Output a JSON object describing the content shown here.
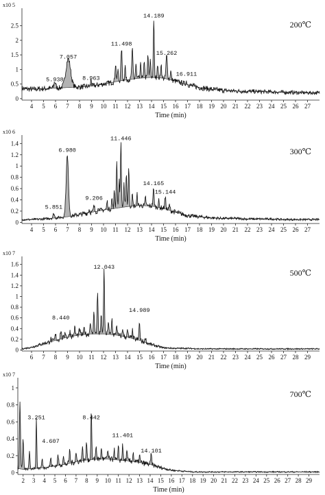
{
  "chart_data": [
    {
      "type": "area",
      "temperature_label": "200℃",
      "multiplier": "x10 5",
      "xlabel": "Time (min)",
      "xlim": [
        3.2,
        28
      ],
      "ylim": [
        -0.05,
        3.1
      ],
      "xticks": [
        4,
        5,
        6,
        7,
        8,
        9,
        10,
        11,
        12,
        13,
        14,
        15,
        16,
        17,
        18,
        19,
        20,
        21,
        22,
        23,
        24,
        25,
        26,
        27
      ],
      "yticks": [
        0,
        0.5,
        1,
        1.5,
        2,
        2.5
      ],
      "ytick_labels": [
        "0",
        "0.5",
        "1",
        "1.5",
        "2",
        "2.5"
      ],
      "baseline": [
        [
          3.2,
          0.35
        ],
        [
          4,
          0.32
        ],
        [
          5,
          0.34
        ],
        [
          6,
          0.36
        ],
        [
          7,
          0.38
        ],
        [
          8,
          0.4
        ],
        [
          9,
          0.43
        ],
        [
          10,
          0.5
        ],
        [
          11,
          0.58
        ],
        [
          12,
          0.65
        ],
        [
          13,
          0.7
        ],
        [
          14,
          0.73
        ],
        [
          15,
          0.7
        ],
        [
          16,
          0.6
        ],
        [
          17,
          0.48
        ],
        [
          18,
          0.38
        ],
        [
          19,
          0.32
        ],
        [
          20,
          0.28
        ],
        [
          21,
          0.26
        ],
        [
          22,
          0.25
        ],
        [
          23,
          0.24
        ],
        [
          24,
          0.23
        ],
        [
          25,
          0.22
        ],
        [
          26,
          0.21
        ],
        [
          27,
          0.2
        ],
        [
          28,
          0.2
        ]
      ],
      "peaks": [
        [
          5.938,
          0.22,
          0.08
        ],
        [
          7.057,
          0.98,
          0.2
        ],
        [
          8.963,
          0.22,
          0.04
        ],
        [
          11.0,
          0.6,
          0.05
        ],
        [
          11.2,
          0.4,
          0.04
        ],
        [
          11.498,
          1.1,
          0.05
        ],
        [
          11.8,
          0.5,
          0.04
        ],
        [
          12.4,
          1.0,
          0.05
        ],
        [
          12.7,
          0.5,
          0.04
        ],
        [
          13.1,
          0.5,
          0.04
        ],
        [
          13.4,
          0.6,
          0.04
        ],
        [
          13.7,
          0.8,
          0.04
        ],
        [
          13.9,
          0.6,
          0.04
        ],
        [
          14.189,
          2.0,
          0.04
        ],
        [
          14.5,
          0.5,
          0.04
        ],
        [
          14.8,
          0.5,
          0.04
        ],
        [
          15.262,
          0.8,
          0.06
        ],
        [
          15.6,
          0.3,
          0.05
        ],
        [
          16.911,
          0.1,
          0.05
        ]
      ],
      "labeled_peaks": [
        {
          "label": "5.938",
          "x": 5.938,
          "y": 0.6
        },
        {
          "label": "7.057",
          "x": 7.057,
          "y": 1.37
        },
        {
          "label": "8.963",
          "x": 8.963,
          "y": 0.64
        },
        {
          "label": "11.498",
          "x": 11.498,
          "y": 1.82
        },
        {
          "label": "14.189",
          "x": 14.189,
          "y": 2.78
        },
        {
          "label": "15.262",
          "x": 15.262,
          "y": 1.5
        },
        {
          "label": "16.911",
          "x": 16.911,
          "y": 0.78
        }
      ]
    },
    {
      "type": "area",
      "temperature_label": "300℃",
      "multiplier": "x10 6",
      "xlabel": "Time (min)",
      "xlim": [
        3.2,
        28
      ],
      "ylim": [
        -0.02,
        1.55
      ],
      "xticks": [
        4,
        5,
        6,
        7,
        8,
        9,
        10,
        11,
        12,
        13,
        14,
        15,
        16,
        17,
        18,
        19,
        20,
        21,
        22,
        23,
        24,
        25,
        26,
        27
      ],
      "yticks": [
        0,
        0.2,
        0.4,
        0.6,
        0.8,
        1,
        1.2,
        1.4
      ],
      "ytick_labels": [
        "0",
        "0.2",
        "0.4",
        "0.6",
        "0.8",
        "1",
        "1.2",
        "1.4"
      ],
      "baseline": [
        [
          3.2,
          0.05
        ],
        [
          4,
          0.05
        ],
        [
          5,
          0.06
        ],
        [
          6,
          0.08
        ],
        [
          7,
          0.1
        ],
        [
          8,
          0.14
        ],
        [
          9,
          0.18
        ],
        [
          10,
          0.22
        ],
        [
          11,
          0.25
        ],
        [
          12,
          0.28
        ],
        [
          13,
          0.3
        ],
        [
          14,
          0.29
        ],
        [
          15,
          0.25
        ],
        [
          16,
          0.18
        ],
        [
          17,
          0.12
        ],
        [
          18,
          0.1
        ],
        [
          19,
          0.08
        ],
        [
          20,
          0.07
        ],
        [
          21,
          0.07
        ],
        [
          22,
          0.06
        ],
        [
          23,
          0.06
        ],
        [
          24,
          0.06
        ],
        [
          25,
          0.05
        ],
        [
          26,
          0.05
        ],
        [
          27,
          0.05
        ],
        [
          28,
          0.05
        ]
      ],
      "peaks": [
        [
          5.851,
          0.08,
          0.06
        ],
        [
          6.98,
          1.08,
          0.1
        ],
        [
          8.8,
          0.06,
          0.05
        ],
        [
          9.206,
          0.1,
          0.05
        ],
        [
          9.6,
          0.08,
          0.04
        ],
        [
          10.3,
          0.15,
          0.04
        ],
        [
          10.7,
          0.18,
          0.04
        ],
        [
          10.9,
          0.3,
          0.04
        ],
        [
          11.1,
          0.85,
          0.04
        ],
        [
          11.3,
          0.5,
          0.04
        ],
        [
          11.446,
          1.15,
          0.04
        ],
        [
          11.7,
          0.4,
          0.04
        ],
        [
          11.9,
          0.6,
          0.04
        ],
        [
          12.1,
          0.7,
          0.04
        ],
        [
          12.4,
          0.2,
          0.04
        ],
        [
          12.8,
          0.2,
          0.04
        ],
        [
          13.5,
          0.15,
          0.04
        ],
        [
          14.165,
          0.3,
          0.05
        ],
        [
          14.6,
          0.12,
          0.04
        ],
        [
          15.144,
          0.2,
          0.05
        ],
        [
          15.5,
          0.1,
          0.04
        ]
      ],
      "labeled_peaks": [
        {
          "label": "5.851",
          "x": 5.851,
          "y": 0.24
        },
        {
          "label": "6.980",
          "x": 6.98,
          "y": 1.25
        },
        {
          "label": "9.206",
          "x": 9.206,
          "y": 0.4
        },
        {
          "label": "11.446",
          "x": 11.446,
          "y": 1.46
        },
        {
          "label": "14.165",
          "x": 14.165,
          "y": 0.66
        },
        {
          "label": "15.144",
          "x": 15.144,
          "y": 0.51
        }
      ]
    },
    {
      "type": "area",
      "temperature_label": "500℃",
      "multiplier": "x10 7",
      "xlabel": "Time (min)",
      "xlim": [
        5.2,
        30
      ],
      "ylim": [
        -0.02,
        1.75
      ],
      "xticks": [
        6,
        7,
        8,
        9,
        10,
        11,
        12,
        13,
        14,
        15,
        16,
        17,
        18,
        19,
        20,
        21,
        22,
        23,
        24,
        25,
        26,
        27,
        28,
        29
      ],
      "yticks": [
        0,
        0.2,
        0.4,
        0.6,
        0.8,
        1,
        1.2,
        1.4,
        1.6
      ],
      "ytick_labels": [
        "0",
        "0.2",
        "0.4",
        "0.6",
        "0.8",
        "1",
        "1.2",
        "1.4",
        "1.6"
      ],
      "baseline": [
        [
          5.2,
          0.02
        ],
        [
          6,
          0.05
        ],
        [
          7,
          0.12
        ],
        [
          8,
          0.18
        ],
        [
          9,
          0.24
        ],
        [
          10,
          0.28
        ],
        [
          11,
          0.3
        ],
        [
          12,
          0.3
        ],
        [
          13,
          0.28
        ],
        [
          14,
          0.24
        ],
        [
          15,
          0.18
        ],
        [
          16,
          0.1
        ],
        [
          17,
          0.04
        ],
        [
          18,
          0.03
        ],
        [
          19,
          0.03
        ],
        [
          20,
          0.02
        ],
        [
          21,
          0.02
        ],
        [
          22,
          0.02
        ],
        [
          23,
          0.02
        ],
        [
          24,
          0.02
        ],
        [
          25,
          0.02
        ],
        [
          26,
          0.02
        ],
        [
          27,
          0.02
        ],
        [
          28,
          0.02
        ],
        [
          29,
          0.02
        ],
        [
          30,
          0.02
        ]
      ],
      "peaks": [
        [
          7.6,
          0.05,
          0.05
        ],
        [
          8.0,
          0.1,
          0.05
        ],
        [
          8.44,
          0.15,
          0.05
        ],
        [
          8.8,
          0.12,
          0.05
        ],
        [
          9.2,
          0.1,
          0.05
        ],
        [
          9.6,
          0.15,
          0.05
        ],
        [
          10.0,
          0.1,
          0.05
        ],
        [
          10.4,
          0.12,
          0.05
        ],
        [
          10.9,
          0.25,
          0.04
        ],
        [
          11.2,
          0.45,
          0.04
        ],
        [
          11.5,
          0.8,
          0.04
        ],
        [
          11.8,
          0.35,
          0.04
        ],
        [
          12.043,
          1.2,
          0.04
        ],
        [
          12.4,
          0.25,
          0.04
        ],
        [
          12.7,
          0.3,
          0.04
        ],
        [
          13.1,
          0.2,
          0.04
        ],
        [
          13.6,
          0.15,
          0.04
        ],
        [
          14.0,
          0.12,
          0.04
        ],
        [
          14.4,
          0.15,
          0.04
        ],
        [
          14.989,
          0.35,
          0.04
        ],
        [
          15.5,
          0.1,
          0.04
        ]
      ],
      "labeled_peaks": [
        {
          "label": "8.440",
          "x": 8.44,
          "y": 0.57
        },
        {
          "label": "12.043",
          "x": 12.043,
          "y": 1.52
        },
        {
          "label": "14.989",
          "x": 14.989,
          "y": 0.71
        }
      ]
    },
    {
      "type": "area",
      "temperature_label": "700℃",
      "multiplier": "x10 7",
      "xlabel": "Time (min)",
      "xlim": [
        1.5,
        30
      ],
      "ylim": [
        -0.02,
        1.12
      ],
      "xticks": [
        2,
        3,
        4,
        5,
        6,
        7,
        8,
        9,
        10,
        11,
        12,
        13,
        14,
        15,
        16,
        17,
        18,
        19,
        20,
        21,
        22,
        23,
        24,
        25,
        26,
        27,
        28,
        29
      ],
      "yticks": [
        0,
        0.2,
        0.4,
        0.6,
        0.8,
        1
      ],
      "ytick_labels": [
        "0",
        "0.2",
        "0.4",
        "0.6",
        "0.8",
        "1"
      ],
      "baseline": [
        [
          1.5,
          0.05
        ],
        [
          2,
          0.04
        ],
        [
          3,
          0.05
        ],
        [
          4,
          0.06
        ],
        [
          5,
          0.08
        ],
        [
          6,
          0.1
        ],
        [
          7,
          0.13
        ],
        [
          8,
          0.15
        ],
        [
          9,
          0.16
        ],
        [
          10,
          0.16
        ],
        [
          11,
          0.15
        ],
        [
          12,
          0.14
        ],
        [
          13,
          0.12
        ],
        [
          14,
          0.1
        ],
        [
          15,
          0.06
        ],
        [
          16,
          0.03
        ],
        [
          17,
          0.02
        ],
        [
          18,
          0.01
        ],
        [
          19,
          0.01
        ],
        [
          20,
          0.01
        ],
        [
          21,
          0.01
        ],
        [
          22,
          0.01
        ],
        [
          23,
          0.01
        ],
        [
          24,
          0.01
        ],
        [
          25,
          0.01
        ],
        [
          26,
          0.01
        ],
        [
          27,
          0.01
        ],
        [
          28,
          0.01
        ],
        [
          29,
          0.01
        ],
        [
          30,
          0.01
        ]
      ],
      "peaks": [
        [
          1.7,
          0.8,
          0.05
        ],
        [
          2.0,
          0.35,
          0.05
        ],
        [
          2.6,
          0.2,
          0.05
        ],
        [
          3.251,
          0.58,
          0.04
        ],
        [
          3.8,
          0.1,
          0.05
        ],
        [
          4.607,
          0.1,
          0.05
        ],
        [
          5.3,
          0.12,
          0.05
        ],
        [
          5.8,
          0.1,
          0.05
        ],
        [
          6.4,
          0.15,
          0.05
        ],
        [
          7.0,
          0.1,
          0.05
        ],
        [
          7.6,
          0.15,
          0.05
        ],
        [
          8.0,
          0.2,
          0.05
        ],
        [
          8.442,
          0.6,
          0.04
        ],
        [
          8.9,
          0.15,
          0.05
        ],
        [
          9.4,
          0.12,
          0.05
        ],
        [
          10.0,
          0.1,
          0.05
        ],
        [
          10.6,
          0.12,
          0.05
        ],
        [
          11.0,
          0.15,
          0.04
        ],
        [
          11.401,
          0.2,
          0.04
        ],
        [
          11.8,
          0.1,
          0.05
        ],
        [
          12.4,
          0.1,
          0.05
        ],
        [
          13.0,
          0.08,
          0.05
        ],
        [
          14.101,
          0.12,
          0.05
        ]
      ],
      "labeled_peaks": [
        {
          "label": "3.251",
          "x": 3.251,
          "y": 0.63
        },
        {
          "label": "4.607",
          "x": 4.607,
          "y": 0.35
        },
        {
          "label": "8.442",
          "x": 8.442,
          "y": 0.63
        },
        {
          "label": "11.401",
          "x": 11.401,
          "y": 0.42
        },
        {
          "label": "14.101",
          "x": 14.101,
          "y": 0.24
        }
      ]
    }
  ]
}
